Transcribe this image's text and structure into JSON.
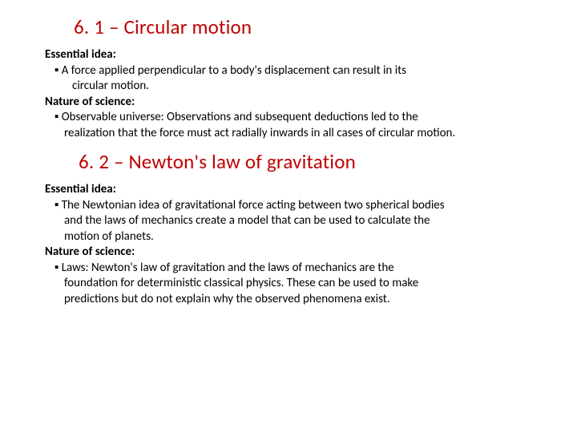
{
  "section1": {
    "title": "6. 1 – Circular motion",
    "essential_label": "Essential idea:",
    "essential_bullet": "▪ A force applied perpendicular to a body's displacement can result in its",
    "essential_cont": "circular motion.",
    "nature_label": "Nature of science:",
    "nature_bullet": "▪ Observable universe: Observations and subsequent deductions led to the",
    "nature_cont": "realization that the force must act radially inwards in all cases of circular motion."
  },
  "section2": {
    "title": "6. 2 – Newton's law of gravitation",
    "essential_label": "Essential idea:",
    "essential_bullet": "▪ The Newtonian idea of gravitational force acting between two spherical bodies",
    "essential_cont1": "and the laws of mechanics create a model that can be used to calculate the",
    "essential_cont2": "motion of planets.",
    "nature_label": "Nature of science:",
    "nature_bullet": "▪ Laws: Newton's law of gravitation and the laws of mechanics are the",
    "nature_cont1": "foundation for deterministic classical physics. These can be used to make",
    "nature_cont2": "predictions but do not explain why the observed phenomena exist."
  }
}
